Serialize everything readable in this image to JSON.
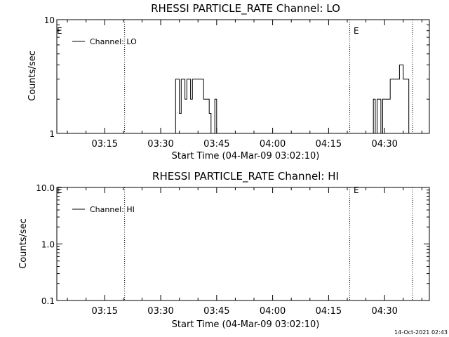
{
  "footer": {
    "timestamp": "14-Oct-2021 02:43"
  },
  "chart_data": [
    {
      "type": "line",
      "title": "RHESSI PARTICLE_RATE Channel: LO",
      "xlabel": "Start Time (04-Mar-09 03:02:10)",
      "ylabel": "Counts/sec",
      "yscale": "log",
      "ylim": [
        1,
        10
      ],
      "y_ticks": [
        1,
        10
      ],
      "y_tick_labels": [
        "1",
        "10"
      ],
      "xlim": [
        "03:02:10",
        "04:42:00"
      ],
      "x_ticks": [
        "03:15",
        "03:30",
        "03:45",
        "04:00",
        "04:15",
        "04:30"
      ],
      "legend": {
        "position": "top-left",
        "entries": [
          "Channel: LO"
        ]
      },
      "markers": [
        {
          "label": "",
          "time": "03:20:20"
        },
        {
          "label": "E",
          "time": "04:20:40"
        },
        {
          "label": "",
          "time": "04:37:30"
        }
      ],
      "start_marker_label": "E",
      "series": [
        {
          "name": "Channel: LO",
          "x": [
            "03:33:00",
            "03:34:00",
            "03:35:00",
            "03:35:30",
            "03:36:00",
            "03:36:30",
            "03:37:00",
            "03:37:30",
            "03:38:00",
            "03:38:30",
            "03:39:00",
            "03:40:00",
            "03:41:00",
            "03:41:30",
            "03:42:00",
            "03:43:00",
            "03:43:30",
            "03:44:00",
            "03:44:30",
            "03:45:00",
            "04:26:00",
            "04:27:00",
            "04:27:30",
            "04:28:00",
            "04:28:30",
            "04:29:00",
            "04:29:30",
            "04:30:00",
            "04:31:00",
            "04:31:30",
            "04:32:00",
            "04:33:00",
            "04:34:00",
            "04:35:00",
            "04:36:00"
          ],
          "y": [
            1,
            3,
            1.5,
            3,
            3,
            2,
            3,
            3,
            2,
            3,
            3,
            3,
            3,
            2,
            2,
            1.5,
            1,
            1,
            2,
            1,
            1,
            2,
            1,
            2,
            2,
            1,
            2,
            2,
            2,
            3,
            3,
            3,
            4,
            3,
            3
          ]
        }
      ]
    },
    {
      "type": "line",
      "title": "RHESSI PARTICLE_RATE Channel: HI",
      "xlabel": "Start Time (04-Mar-09 03:02:10)",
      "ylabel": "Counts/sec",
      "yscale": "log",
      "ylim": [
        0.1,
        10
      ],
      "y_ticks": [
        0.1,
        1,
        10
      ],
      "y_tick_labels": [
        "0.1",
        "1.0",
        "10.0"
      ],
      "xlim": [
        "03:02:10",
        "04:42:00"
      ],
      "x_ticks": [
        "03:15",
        "03:30",
        "03:45",
        "04:00",
        "04:15",
        "04:30"
      ],
      "legend": {
        "position": "top-left",
        "entries": [
          "Channel: HI"
        ]
      },
      "markers": [
        {
          "label": "",
          "time": "03:20:20"
        },
        {
          "label": "E",
          "time": "04:20:40"
        },
        {
          "label": "",
          "time": "04:37:30"
        }
      ],
      "start_marker_label": "E",
      "series": [
        {
          "name": "Channel: HI",
          "x": [],
          "y": []
        }
      ]
    }
  ]
}
